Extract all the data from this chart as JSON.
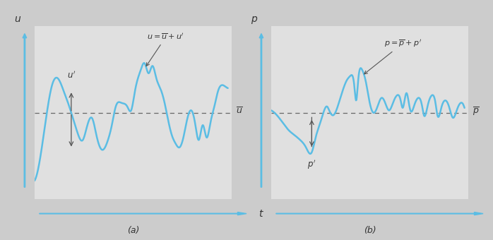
{
  "fig_width": 6.98,
  "fig_height": 3.4,
  "bg_color": "#cccccc",
  "panel_bg": "#e0e0e0",
  "blue_color": "#5bbde4",
  "dashed_color": "#666666",
  "text_color": "#333333",
  "arrow_color": "#555555",
  "label_a": "(a)",
  "label_b": "(b)",
  "ylabel_a": "u",
  "ylabel_b": "p",
  "xlabel": "t",
  "mean_label_a": "$\\overline{u}$",
  "mean_label_b": "$\\overline{p}$",
  "eq_label_a": "$u = \\overline{u} + u'$",
  "eq_label_b": "$p = \\overline{p} + p'$",
  "fluct_label_a": "$u'$",
  "fluct_label_b": "$p'$"
}
